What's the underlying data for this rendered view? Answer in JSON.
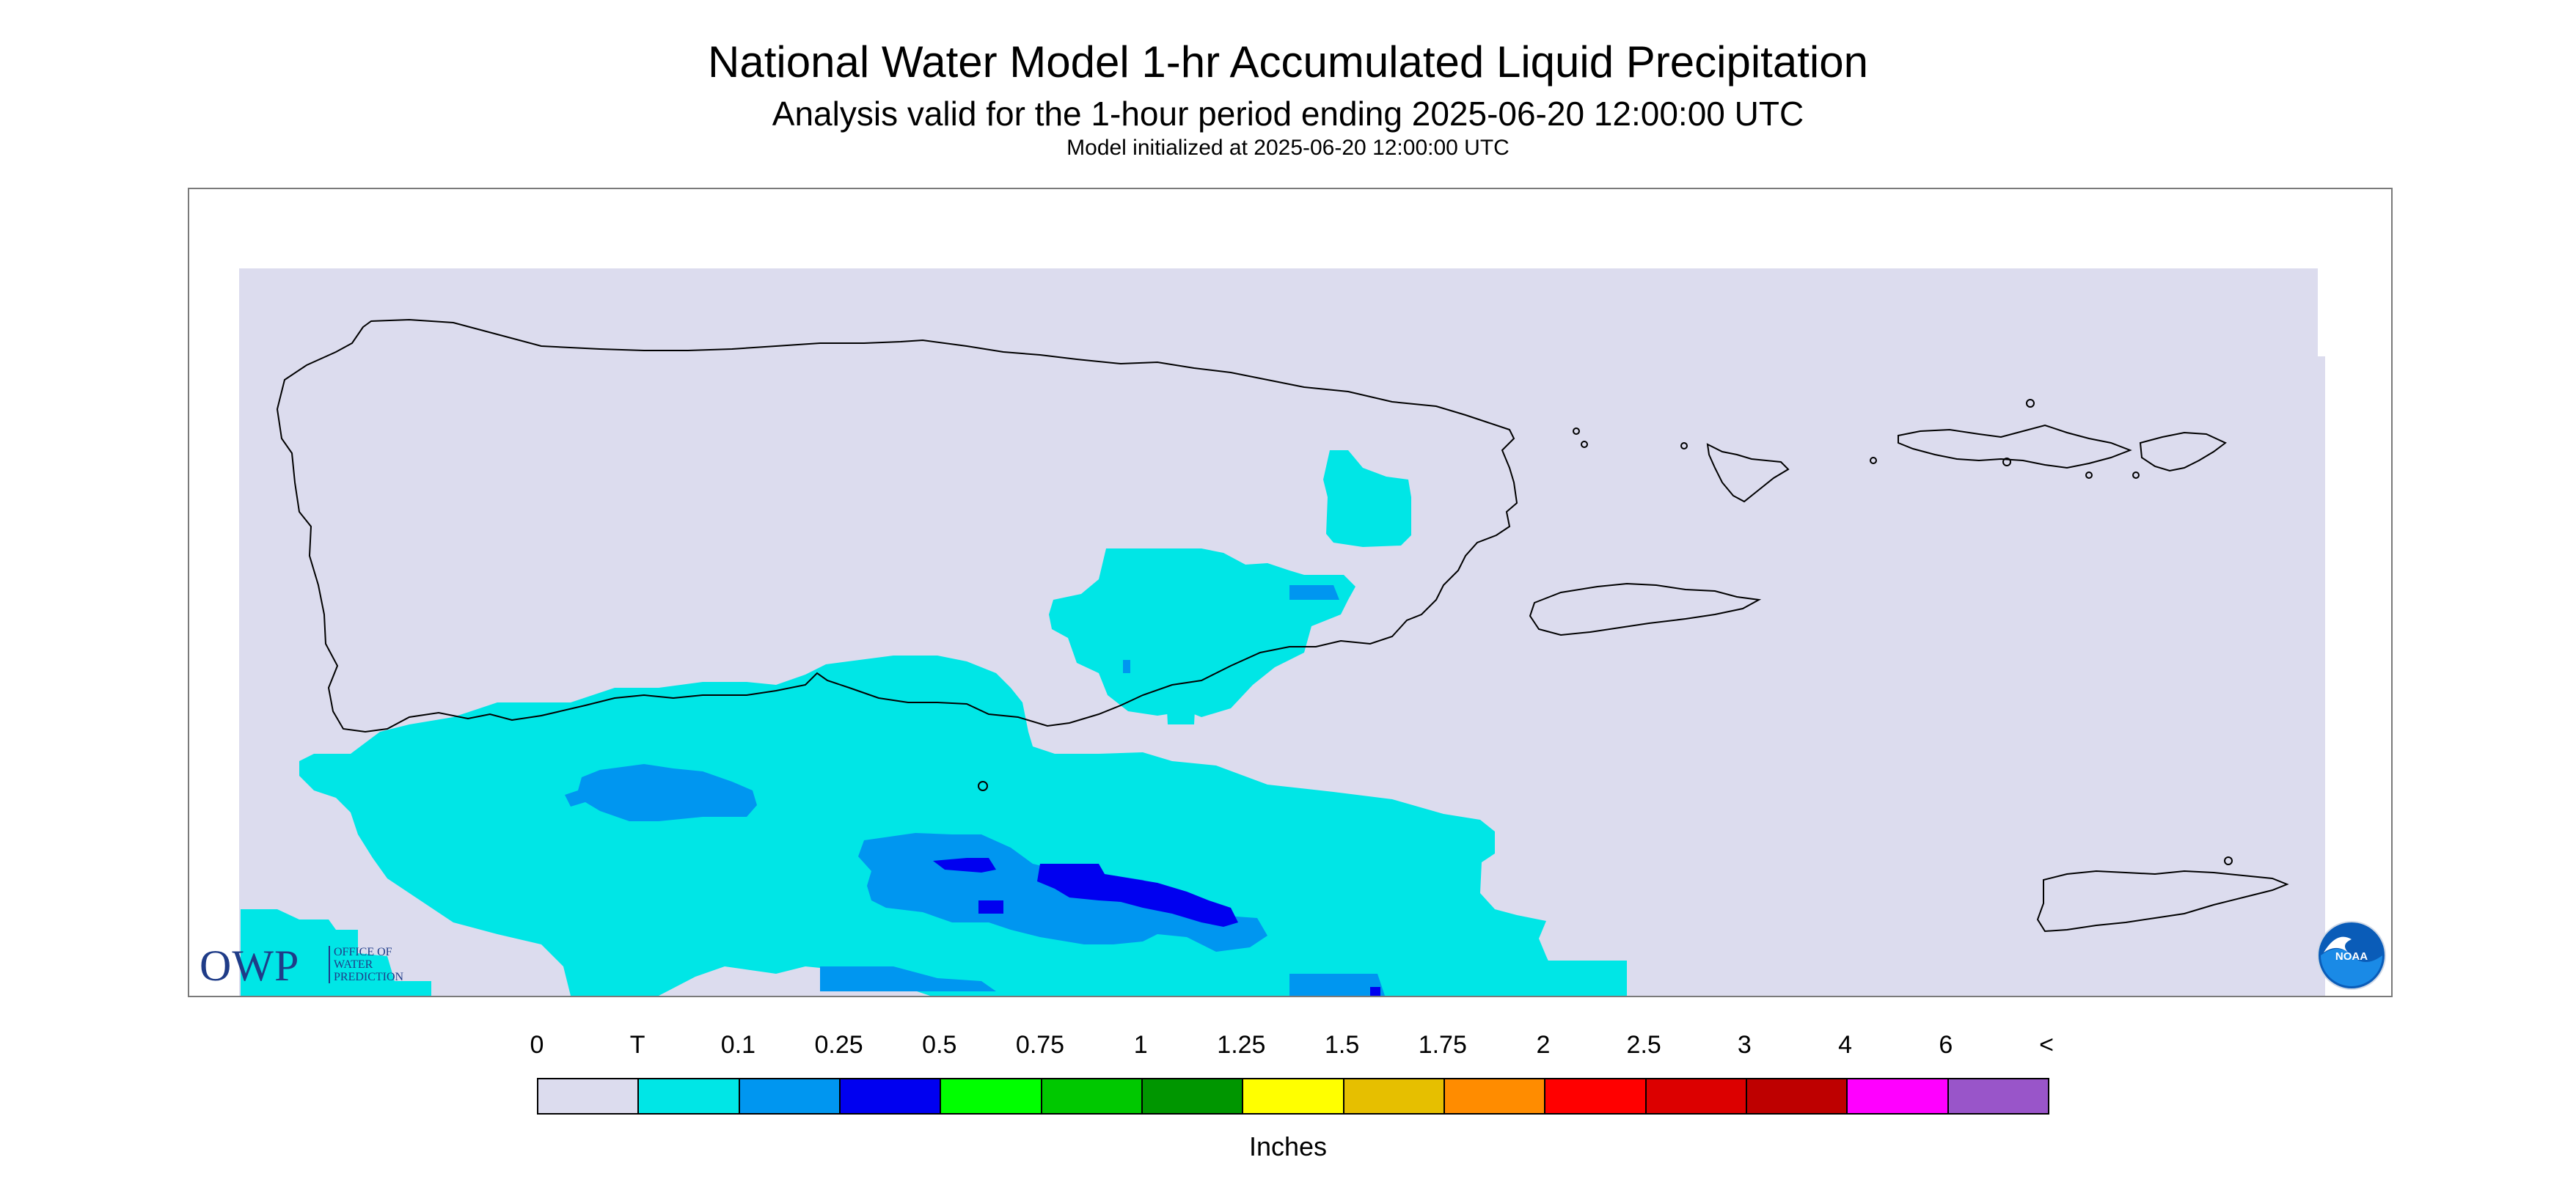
{
  "header": {
    "title": "National Water Model 1-hr Accumulated Liquid Precipitation",
    "subtitle": "Analysis valid for the 1-hour period ending 2025-06-20 12:00:00 UTC",
    "init_line": "Model initialized at 2025-06-20 12:00:00 UTC"
  },
  "map": {
    "background_color": "#dcdcee",
    "coast_color": "#000000"
  },
  "legend": {
    "labels": [
      "0",
      "T",
      "0.1",
      "0.25",
      "0.5",
      "0.75",
      "1",
      "1.25",
      "1.5",
      "1.75",
      "2",
      "2.5",
      "3",
      "4",
      "6",
      "<"
    ],
    "colors": [
      "#dcdcee",
      "#00e6e6",
      "#0096f0",
      "#0000f0",
      "#00ff00",
      "#00c800",
      "#009600",
      "#ffff00",
      "#e6bf00",
      "#ff8c00",
      "#ff0000",
      "#dc0000",
      "#be0000",
      "#ff00ff",
      "#9955c9"
    ],
    "units": "Inches"
  },
  "logos": {
    "owp_text": "OWP",
    "owp_subtext": [
      "OFFICE OF",
      "WATER",
      "PREDICTION"
    ],
    "noaa_text": "NOAA"
  }
}
